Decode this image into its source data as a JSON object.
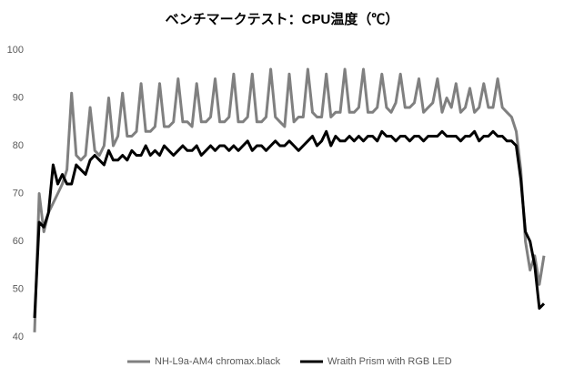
{
  "chart_data": {
    "type": "line",
    "title": "ベンチマークテスト：CPU温度（℃）",
    "ylim": [
      40,
      100
    ],
    "yticks": [
      40,
      50,
      60,
      70,
      80,
      90,
      100
    ],
    "grid": false,
    "legend": "bottom",
    "series": [
      {
        "name": "NH-L9a-AM4 chromax.black",
        "color": "#808080",
        "values": [
          41,
          70,
          62,
          66,
          68,
          70,
          72,
          75,
          91,
          78,
          77,
          78,
          88,
          79,
          78,
          80,
          90,
          80,
          82,
          91,
          82,
          82,
          83,
          93,
          83,
          83,
          84,
          93,
          84,
          84,
          85,
          94,
          85,
          85,
          84,
          93,
          85,
          85,
          86,
          94,
          85,
          85,
          86,
          95,
          85,
          85,
          86,
          95,
          85,
          85,
          86,
          96,
          86,
          85,
          84,
          95,
          85,
          86,
          86,
          96,
          87,
          86,
          86,
          95,
          86,
          87,
          87,
          96,
          87,
          87,
          88,
          96,
          87,
          87,
          88,
          95,
          88,
          87,
          89,
          95,
          88,
          88,
          89,
          94,
          87,
          88,
          89,
          94,
          87,
          90,
          88,
          93,
          87,
          88,
          92,
          87,
          88,
          93,
          88,
          88,
          94,
          88,
          87,
          86,
          83,
          75,
          60,
          54,
          57,
          51,
          57
        ]
      },
      {
        "name": "Wraith Prism with RGB LED",
        "color": "#000000",
        "values": [
          44,
          64,
          63,
          66,
          76,
          72,
          74,
          72,
          72,
          76,
          75,
          74,
          77,
          78,
          77,
          76,
          79,
          77,
          77,
          78,
          77,
          79,
          78,
          78,
          80,
          78,
          79,
          78,
          80,
          79,
          78,
          79,
          80,
          79,
          79,
          80,
          78,
          79,
          80,
          79,
          80,
          80,
          79,
          80,
          79,
          80,
          81,
          79,
          80,
          80,
          79,
          80,
          81,
          80,
          80,
          81,
          80,
          79,
          80,
          81,
          82,
          80,
          81,
          83,
          80,
          82,
          81,
          81,
          82,
          81,
          82,
          81,
          82,
          82,
          81,
          83,
          82,
          82,
          81,
          82,
          82,
          81,
          82,
          82,
          81,
          82,
          82,
          82,
          83,
          82,
          82,
          82,
          81,
          82,
          82,
          83,
          81,
          82,
          82,
          83,
          82,
          82,
          81,
          81,
          80,
          73,
          62,
          60,
          55,
          46,
          47
        ]
      }
    ]
  }
}
